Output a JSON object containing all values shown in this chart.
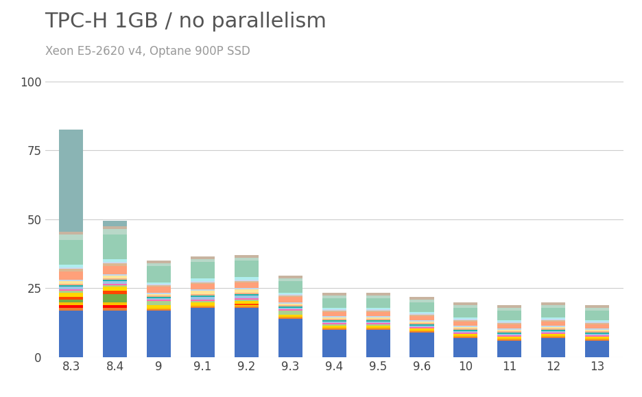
{
  "title": "TPC-H 1GB / no parallelism",
  "subtitle": "Xeon E5-2620 v4, Optane 900P SSD",
  "categories": [
    "8.3",
    "8.4",
    "9",
    "9.1",
    "9.2",
    "9.3",
    "9.4",
    "9.5",
    "9.6",
    "10",
    "11",
    "12",
    "13"
  ],
  "ylim": [
    0,
    105
  ],
  "yticks": [
    0,
    25,
    50,
    75,
    100
  ],
  "background_color": "#ffffff",
  "grid_color": "#cccccc",
  "title_color": "#555555",
  "subtitle_color": "#999999",
  "bar_width": 0.55,
  "segments": [
    {
      "color": "#4472C4",
      "values": [
        17,
        17,
        17,
        18,
        18,
        14,
        10,
        10,
        9,
        7,
        6,
        7,
        6
      ]
    },
    {
      "color": "#ED7D31",
      "values": [
        1,
        1,
        0.5,
        0.5,
        0.5,
        0.5,
        0.5,
        0.5,
        0.5,
        0.5,
        0.5,
        0.5,
        0.5
      ]
    },
    {
      "color": "#FF0000",
      "values": [
        1,
        1,
        0,
        0,
        0,
        0,
        0,
        0,
        0,
        0,
        0,
        0,
        0
      ]
    },
    {
      "color": "#FFC000",
      "values": [
        1,
        1,
        0.5,
        0.5,
        0.5,
        0.5,
        0.5,
        0.5,
        0.5,
        0.5,
        0.5,
        0.5,
        0.5
      ]
    },
    {
      "color": "#70AD47",
      "values": [
        1,
        3,
        0,
        0,
        0,
        0,
        0,
        0,
        0,
        0,
        0,
        0,
        0
      ]
    },
    {
      "color": "#FF4500",
      "values": [
        1,
        1,
        0,
        0,
        0.5,
        0,
        0,
        0,
        0,
        0,
        0,
        0,
        0
      ]
    },
    {
      "color": "#FFD700",
      "values": [
        1.5,
        1.5,
        1,
        1,
        1,
        0.5,
        0.5,
        0.5,
        0.5,
        0.5,
        0.5,
        0.5,
        0.5
      ]
    },
    {
      "color": "#A9D18E",
      "values": [
        0.5,
        0.5,
        1.5,
        0.5,
        0.5,
        1.5,
        0.5,
        0.5,
        0,
        0,
        0,
        0,
        0
      ]
    },
    {
      "color": "#FF69B4",
      "values": [
        0.5,
        0.5,
        0.5,
        0.5,
        0.5,
        0.5,
        0.5,
        0.5,
        0.5,
        0.5,
        0.5,
        0.5,
        0.5
      ]
    },
    {
      "color": "#9DC3E6",
      "values": [
        1,
        1,
        0.5,
        1,
        1,
        0.5,
        0.5,
        0.5,
        0.5,
        0.5,
        0.5,
        0.5,
        0.5
      ]
    },
    {
      "color": "#20B2AA",
      "values": [
        0.5,
        0.5,
        0.5,
        0.5,
        0.5,
        0.5,
        0.5,
        0.5,
        0.5,
        0.5,
        0.5,
        0.5,
        0.5
      ]
    },
    {
      "color": "#F4B183",
      "values": [
        0.5,
        0.5,
        0.5,
        0.5,
        0.5,
        0.5,
        0.5,
        0.5,
        0.5,
        0.5,
        0.5,
        0.5,
        0.5
      ]
    },
    {
      "color": "#FFE699",
      "values": [
        1,
        1,
        0.5,
        1,
        1,
        0.5,
        0.5,
        0.5,
        0.5,
        0.5,
        0.5,
        0.5,
        0.5
      ]
    },
    {
      "color": "#BDD7EE",
      "values": [
        0.5,
        0.5,
        0.5,
        0.5,
        0.5,
        0.5,
        0.5,
        0.5,
        0.5,
        0.5,
        0.5,
        0.5,
        0.5
      ]
    },
    {
      "color": "#FFA07A",
      "values": [
        3,
        3,
        2,
        2,
        2,
        2,
        1.5,
        1.5,
        1.5,
        1.5,
        1.5,
        1.5,
        1.5
      ]
    },
    {
      "color": "#DDB892",
      "values": [
        1,
        1,
        0.5,
        0.5,
        0.5,
        0.5,
        0.5,
        0.5,
        0.5,
        0.5,
        0.5,
        0.5,
        0.5
      ]
    },
    {
      "color": "#C9D9F0",
      "values": [
        0.5,
        0.5,
        0.5,
        0.5,
        0.5,
        0.5,
        0.5,
        0.5,
        0.5,
        0.5,
        0.5,
        0.5,
        0.5
      ]
    },
    {
      "color": "#AFEEEE",
      "values": [
        1,
        1,
        0.5,
        1,
        1,
        0.5,
        0.5,
        0.5,
        0.5,
        0.5,
        0.5,
        0.5,
        0.5
      ]
    },
    {
      "color": "#96CEB4",
      "values": [
        9,
        9,
        6,
        6,
        6,
        4,
        3.5,
        3.5,
        3.5,
        3.5,
        3.5,
        3.5,
        3.5
      ]
    },
    {
      "color": "#B8D8C8",
      "values": [
        2,
        2,
        1,
        1,
        1,
        1,
        1,
        1,
        1,
        1,
        1,
        1,
        1
      ]
    },
    {
      "color": "#C8B4A0",
      "values": [
        1,
        1,
        1,
        1,
        1,
        1,
        1,
        1,
        1,
        1,
        1,
        1,
        1
      ]
    },
    {
      "color": "#8AB4B4",
      "values": [
        37,
        2,
        0,
        0,
        0,
        0,
        0,
        0,
        0,
        0,
        0,
        0,
        0
      ]
    }
  ]
}
